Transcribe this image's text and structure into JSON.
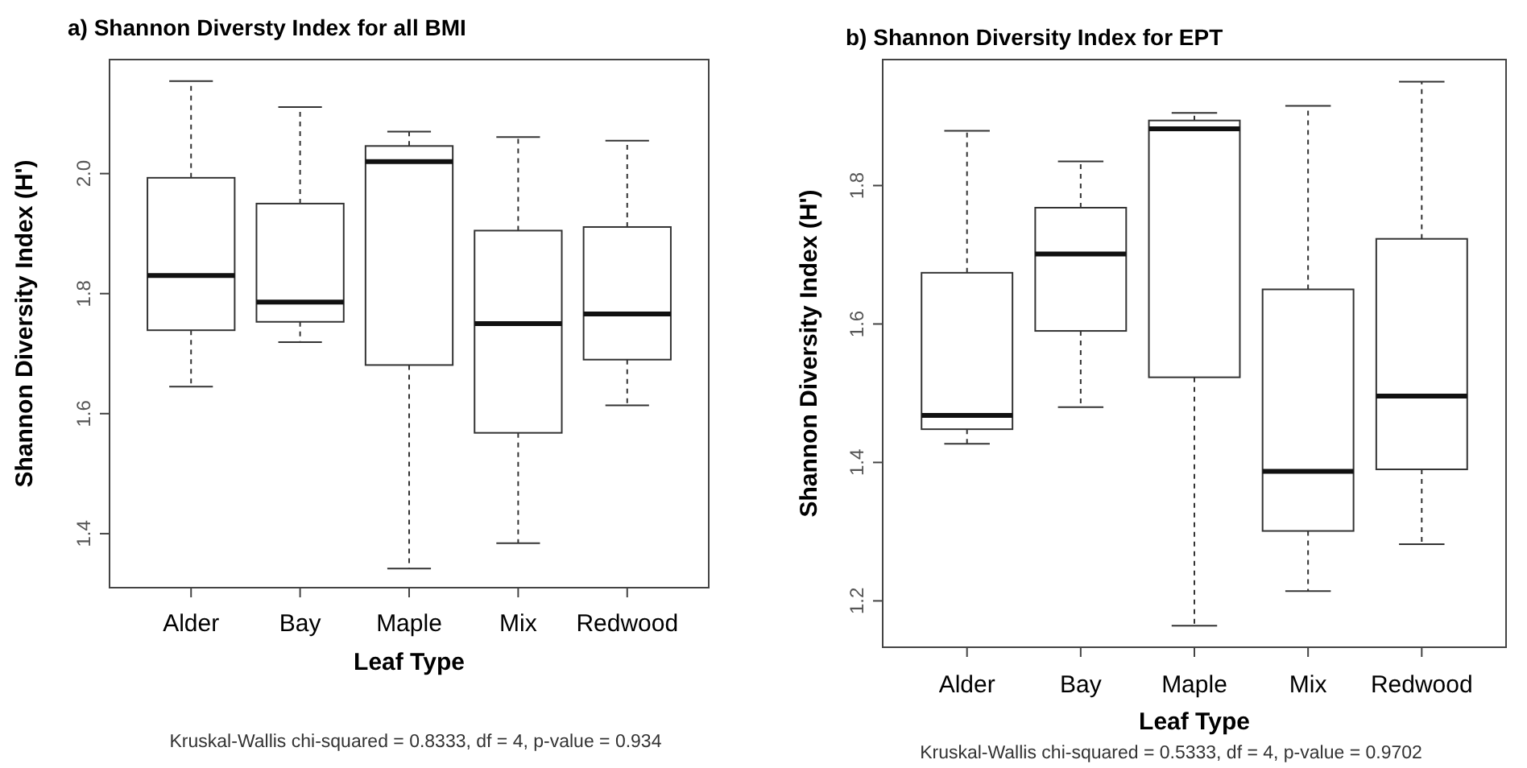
{
  "chart_data": [
    {
      "type": "box",
      "title": "a) Shannon Diversty Index for all BMI",
      "xlabel": "Leaf Type",
      "ylabel": "Shannon Diversity Index (H')",
      "categories": [
        "Alder",
        "Bay",
        "Maple",
        "Mix",
        "Redwood"
      ],
      "ylim": [
        1.31,
        2.19
      ],
      "yticks": [
        {
          "value": 1.4,
          "label": "1.4"
        },
        {
          "value": 1.6,
          "label": "1.6"
        },
        {
          "value": 1.8,
          "label": "1.8"
        },
        {
          "value": 2.0,
          "label": "2.0"
        }
      ],
      "annotations": [
        "Kruskal-Wallis chi-squared = 0.8333, df = 4, p-value = 0.934"
      ],
      "boxes": [
        {
          "low": 1.645,
          "q1": 1.739,
          "median": 1.83,
          "q3": 1.993,
          "high": 2.154
        },
        {
          "low": 1.719,
          "q1": 1.753,
          "median": 1.786,
          "q3": 1.95,
          "high": 2.111
        },
        {
          "low": 1.342,
          "q1": 1.681,
          "median": 2.02,
          "q3": 2.046,
          "high": 2.07
        },
        {
          "low": 1.384,
          "q1": 1.568,
          "median": 1.75,
          "q3": 1.905,
          "high": 2.061
        },
        {
          "low": 1.614,
          "q1": 1.69,
          "median": 1.766,
          "q3": 1.911,
          "high": 2.055
        }
      ]
    },
    {
      "type": "box",
      "title": "b) Shannon Diversity Index for EPT",
      "xlabel": "Leaf Type",
      "ylabel": "Shannon Diversity Index (H')",
      "categories": [
        "Alder",
        "Bay",
        "Maple",
        "Mix",
        "Redwood"
      ],
      "ylim": [
        1.133,
        1.982
      ],
      "yticks": [
        1.2,
        1.4,
        1.6,
        1.8
      ],
      "annotations": [
        "Kruskal-Wallis chi-squared = 0.5333, df = 4, p-value = 0.9702"
      ],
      "boxes": [
        {
          "low": 1.427,
          "q1": 1.448,
          "median": 1.468,
          "q3": 1.674,
          "high": 1.879
        },
        {
          "low": 1.48,
          "q1": 1.59,
          "median": 1.701,
          "q3": 1.768,
          "high": 1.835
        },
        {
          "low": 1.164,
          "q1": 1.523,
          "median": 1.882,
          "q3": 1.894,
          "high": 1.905
        },
        {
          "low": 1.214,
          "q1": 1.301,
          "median": 1.387,
          "q3": 1.65,
          "high": 1.915
        },
        {
          "low": 1.282,
          "q1": 1.39,
          "median": 1.496,
          "q3": 1.723,
          "high": 1.95
        }
      ]
    }
  ]
}
